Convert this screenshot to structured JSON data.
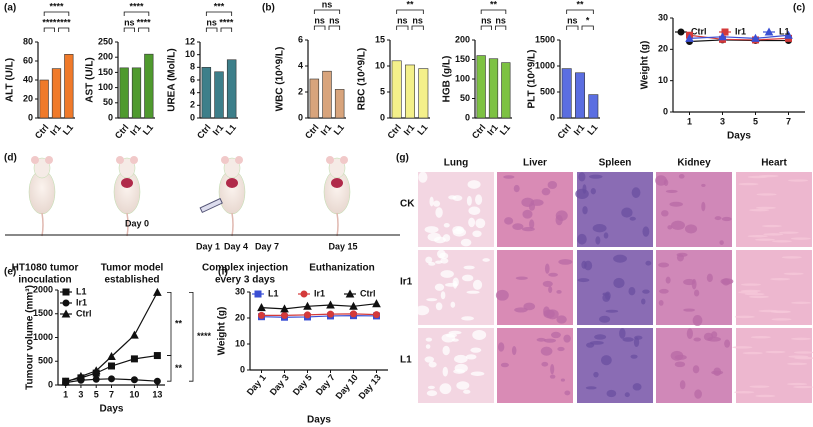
{
  "panel_labels": [
    "(a)",
    "(b)",
    "(c)",
    "(d)",
    "(e)",
    "(f)",
    "(g)"
  ],
  "chart_data": [
    {
      "type": "bar",
      "ylabel": "ALT (U/L)",
      "categories": [
        "Ctrl",
        "Ir1",
        "L1"
      ],
      "values": [
        40,
        52,
        67
      ],
      "color": "#f07a2a",
      "ylim": [
        0,
        80
      ],
      "yticks": [
        0,
        20,
        40,
        60,
        80
      ],
      "annotations": [
        "****",
        "****",
        "****"
      ]
    },
    {
      "type": "bar",
      "ylabel": "AST (U/L)",
      "categories": [
        "Ctrl",
        "Ir1",
        "L1"
      ],
      "values": [
        165,
        165,
        210
      ],
      "color": "#4f9a2e",
      "ylim": [
        0,
        250
      ],
      "yticks": [
        0,
        50,
        100,
        150,
        200,
        250
      ],
      "annotations": [
        "****",
        "ns",
        "****"
      ]
    },
    {
      "type": "bar",
      "ylabel": "UREA (Mol/L)",
      "categories": [
        "Ctrl",
        "Ir1",
        "L1"
      ],
      "values": [
        8,
        7.3,
        9.2
      ],
      "color": "#3d7f8a",
      "ylim": [
        0,
        12
      ],
      "yticks": [
        0,
        2,
        4,
        6,
        8,
        10,
        12
      ],
      "annotations": [
        "***",
        "ns",
        "****"
      ]
    },
    {
      "type": "bar",
      "ylabel": "WBC (10^9/L)",
      "categories": [
        "Ctrl",
        "Ir1",
        "L1"
      ],
      "values": [
        3,
        3.6,
        2.2
      ],
      "color": "#d8a47c",
      "ylim": [
        0,
        6
      ],
      "yticks": [
        0,
        2,
        4,
        6
      ],
      "annotations": [
        "ns",
        "ns",
        "ns"
      ]
    },
    {
      "type": "bar",
      "ylabel": "RBC (10^9/L)",
      "categories": [
        "Ctrl",
        "Ir1",
        "L1"
      ],
      "values": [
        11,
        10.2,
        9.5
      ],
      "color": "#f4f08a",
      "ylim": [
        0,
        15
      ],
      "yticks": [
        0,
        5,
        10,
        15
      ],
      "annotations": [
        "**",
        "ns",
        "ns"
      ]
    },
    {
      "type": "bar",
      "ylabel": "HGB (g/L)",
      "categories": [
        "Ctrl",
        "Ir1",
        "L1"
      ],
      "values": [
        160,
        152,
        142
      ],
      "color": "#7dc242",
      "ylim": [
        0,
        200
      ],
      "yticks": [
        0,
        50,
        100,
        150,
        200
      ],
      "annotations": [
        "**",
        "ns",
        "ns"
      ]
    },
    {
      "type": "bar",
      "ylabel": "PLT (10^9/L)",
      "categories": [
        "Ctrl",
        "Ir1",
        "L1"
      ],
      "values": [
        950,
        870,
        450
      ],
      "color": "#5b6ee1",
      "ylim": [
        0,
        1500
      ],
      "yticks": [
        0,
        500,
        1000,
        1500
      ],
      "annotations": [
        "**",
        "ns",
        "*"
      ]
    },
    {
      "type": "line",
      "ylabel": "Weight (g)",
      "xlabel": "Days",
      "legend": "top",
      "x": [
        1,
        3,
        5,
        7
      ],
      "xlim": [
        0,
        8
      ],
      "xticks": [
        1,
        3,
        5,
        7
      ],
      "ylim": [
        0,
        30
      ],
      "yticks": [
        0,
        10,
        20,
        30
      ],
      "series": [
        {
          "name": "Ctrl",
          "color": "#111111",
          "marker": "circle",
          "values": [
            22.5,
            23,
            22.8,
            22.8
          ]
        },
        {
          "name": "Ir1",
          "color": "#d43a3a",
          "marker": "square",
          "values": [
            24.5,
            23.2,
            23,
            23.5
          ]
        },
        {
          "name": "L1",
          "color": "#3a4fd4",
          "marker": "triangle",
          "values": [
            23.5,
            24,
            23.5,
            24.5
          ]
        }
      ]
    },
    {
      "type": "line",
      "ylabel": "Tumour volume (mm³)",
      "xlabel": "Days",
      "legend": "upper left",
      "x": [
        1,
        3,
        5,
        7,
        10,
        13
      ],
      "xlim": [
        0,
        14
      ],
      "xticks": [
        1,
        3,
        5,
        7,
        10,
        13
      ],
      "ylim": [
        0,
        2000
      ],
      "yticks": [
        0,
        500,
        1000,
        1500,
        2000
      ],
      "annotations": [
        "**",
        "**",
        "****"
      ],
      "series": [
        {
          "name": "L1",
          "color": "#111111",
          "marker": "square",
          "values": [
            80,
            150,
            250,
            400,
            550,
            620
          ]
        },
        {
          "name": "Ir1",
          "color": "#111111",
          "marker": "circle",
          "values": [
            50,
            100,
            120,
            130,
            110,
            80
          ]
        },
        {
          "name": "Ctrl",
          "color": "#111111",
          "marker": "triangle",
          "values": [
            60,
            180,
            300,
            600,
            1050,
            1950
          ]
        }
      ]
    },
    {
      "type": "line",
      "ylabel": "Weight (g)",
      "xlabel": "Days",
      "legend": "top",
      "categories": [
        "Day 1",
        "Day 3",
        "Day 5",
        "Day 7",
        "Day 10",
        "Day 13"
      ],
      "ylim": [
        0,
        30
      ],
      "yticks": [
        0,
        10,
        20,
        30
      ],
      "series": [
        {
          "name": "L1",
          "color": "#3a4fd4",
          "marker": "square",
          "values": [
            20.5,
            20.3,
            20.4,
            20.8,
            20.9,
            20.8
          ]
        },
        {
          "name": "Ir1",
          "color": "#d43a3a",
          "marker": "circle",
          "values": [
            21,
            21,
            21.2,
            21.5,
            21.6,
            21.3
          ]
        },
        {
          "name": "Ctrl",
          "color": "#111111",
          "marker": "triangle",
          "values": [
            24,
            23.5,
            24.5,
            25,
            24.5,
            25.5
          ]
        }
      ]
    }
  ],
  "schematic": {
    "days": [
      "Day 0",
      "Day 1",
      "Day 4",
      "Day 7",
      "Day 15"
    ],
    "steps": [
      [
        "HT1080 tumor",
        "inoculation"
      ],
      [
        "Tumor model",
        "established"
      ],
      [
        "Complex injection",
        "every 3 days"
      ],
      [
        "Euthanization"
      ]
    ]
  },
  "histology": {
    "columns": [
      "Lung",
      "Liver",
      "Spleen",
      "Kidney",
      "Heart"
    ],
    "rows": [
      "CK",
      "Ir1",
      "L1"
    ]
  }
}
